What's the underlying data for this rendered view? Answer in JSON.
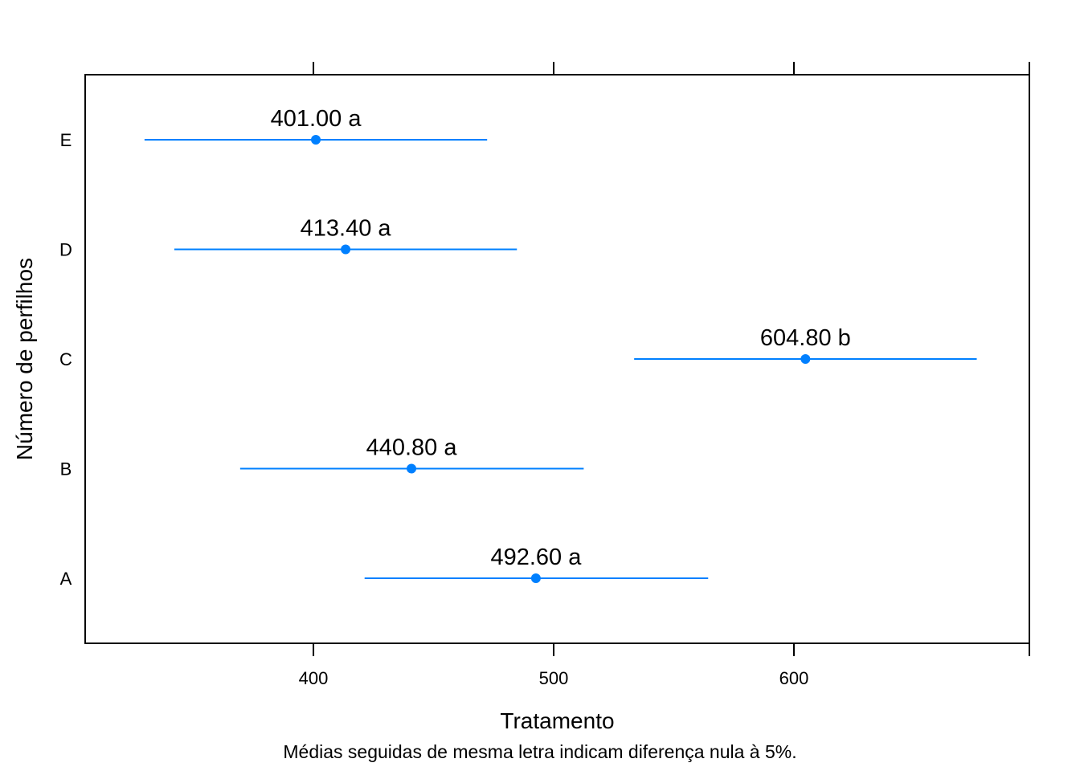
{
  "chart_data": {
    "type": "dotplot-with-intervals",
    "xlabel": "Tratamento",
    "ylabel": "Número de perfilhos",
    "caption": "Médias seguidas de mesma letra indicam diferença nula à 5%.",
    "xlim": [
      305,
      698
    ],
    "x_ticks": [
      400,
      500,
      600
    ],
    "x_tick_labels": [
      "400",
      "500",
      "600"
    ],
    "categories": [
      "A",
      "B",
      "C",
      "D",
      "E"
    ],
    "points": [
      {
        "category": "A",
        "mean": 492.6,
        "lower": 421.3,
        "upper": 564.3,
        "label": "492.60 a"
      },
      {
        "category": "B",
        "mean": 440.8,
        "lower": 369.5,
        "upper": 512.5,
        "label": "440.80 a"
      },
      {
        "category": "C",
        "mean": 604.8,
        "lower": 533.5,
        "upper": 676.1,
        "label": "604.80 b"
      },
      {
        "category": "D",
        "mean": 413.4,
        "lower": 342.1,
        "upper": 484.7,
        "label": "413.40 a"
      },
      {
        "category": "E",
        "mean": 401.0,
        "lower": 329.7,
        "upper": 472.3,
        "label": "401.00 a"
      }
    ],
    "colors": {
      "series": "#0080ff",
      "axis": "#000000"
    },
    "grid": false,
    "legend": "none"
  }
}
